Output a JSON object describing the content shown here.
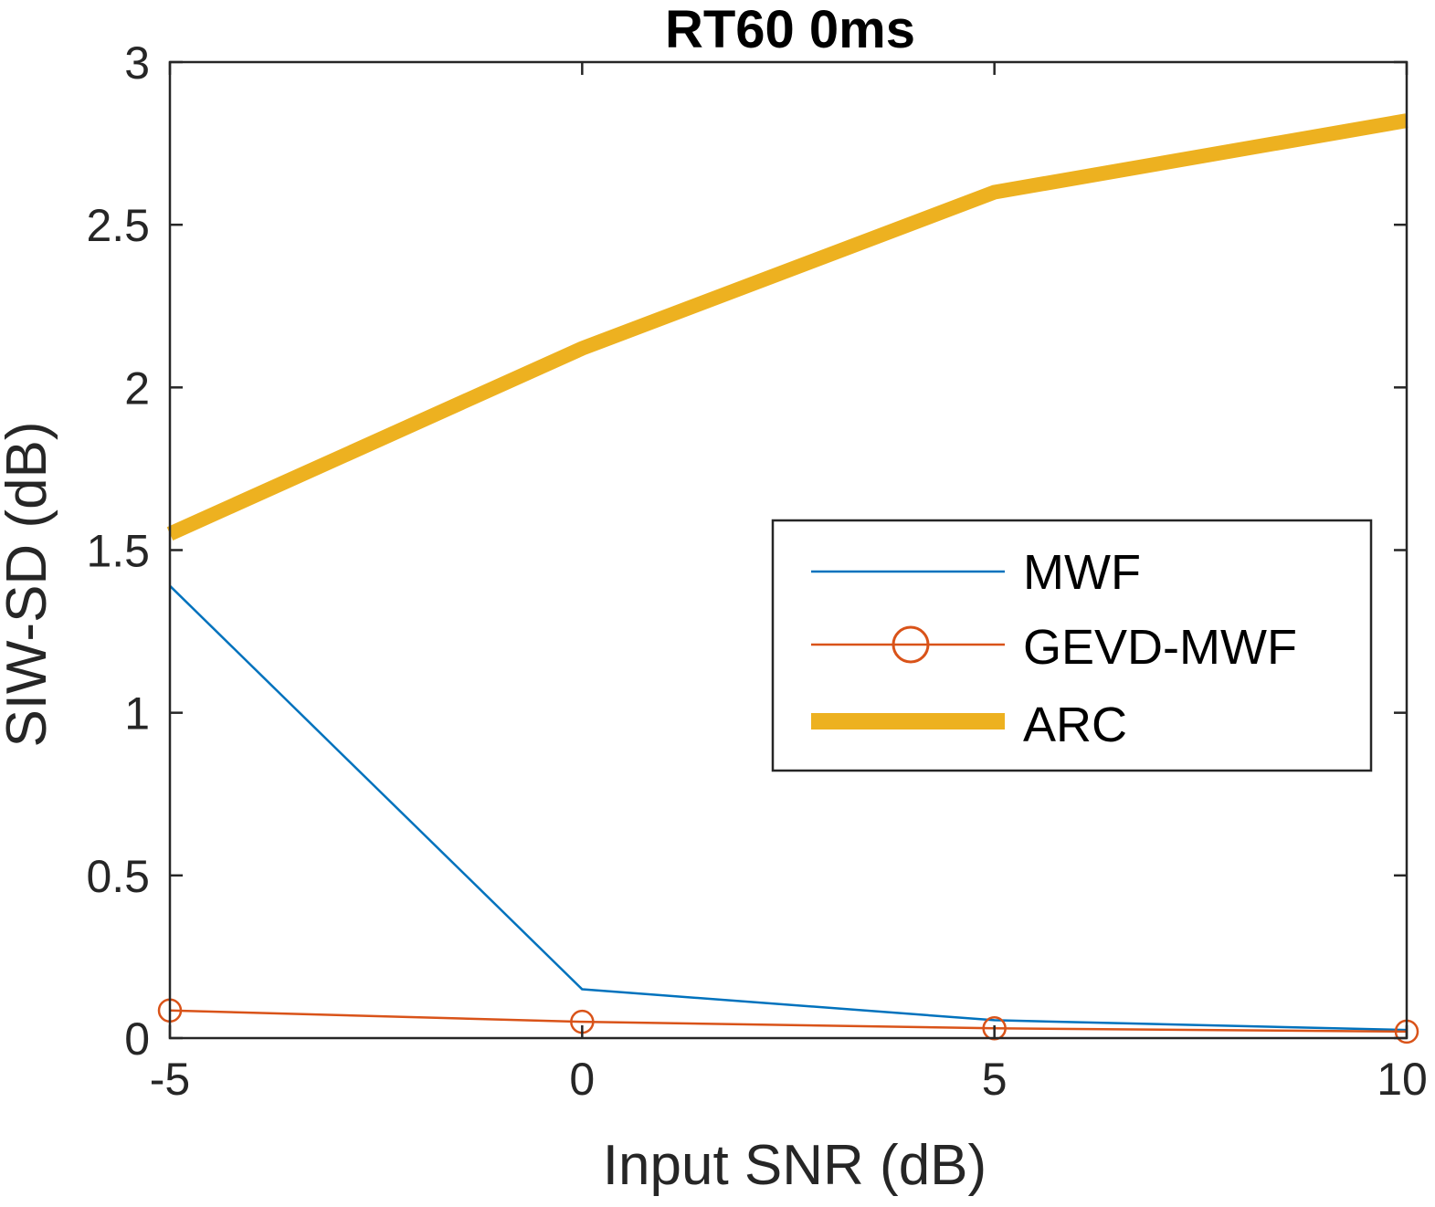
{
  "chart_data": {
    "type": "line",
    "title": "RT60 0ms",
    "xlabel": "Input SNR (dB)",
    "ylabel": "SIW-SD (dB)",
    "x": [
      -5,
      0,
      5,
      10
    ],
    "xticks": [
      "-5",
      "0",
      "5",
      "10"
    ],
    "yticks": [
      "0",
      "0.5",
      "1",
      "1.5",
      "2",
      "2.5",
      "3"
    ],
    "xlim": [
      -5,
      10
    ],
    "ylim": [
      0,
      3
    ],
    "grid": false,
    "legend_position": "right",
    "series": [
      {
        "name": "MWF",
        "values": [
          1.39,
          0.15,
          0.055,
          0.025
        ],
        "color": "#0072BD",
        "marker": "none",
        "width": "thin"
      },
      {
        "name": "GEVD-MWF",
        "values": [
          0.085,
          0.05,
          0.03,
          0.02
        ],
        "color": "#D95319",
        "marker": "circle",
        "width": "thin"
      },
      {
        "name": "ARC",
        "values": [
          1.55,
          2.12,
          2.6,
          2.82
        ],
        "color": "#EDB120",
        "marker": "none",
        "width": "thick"
      }
    ]
  }
}
